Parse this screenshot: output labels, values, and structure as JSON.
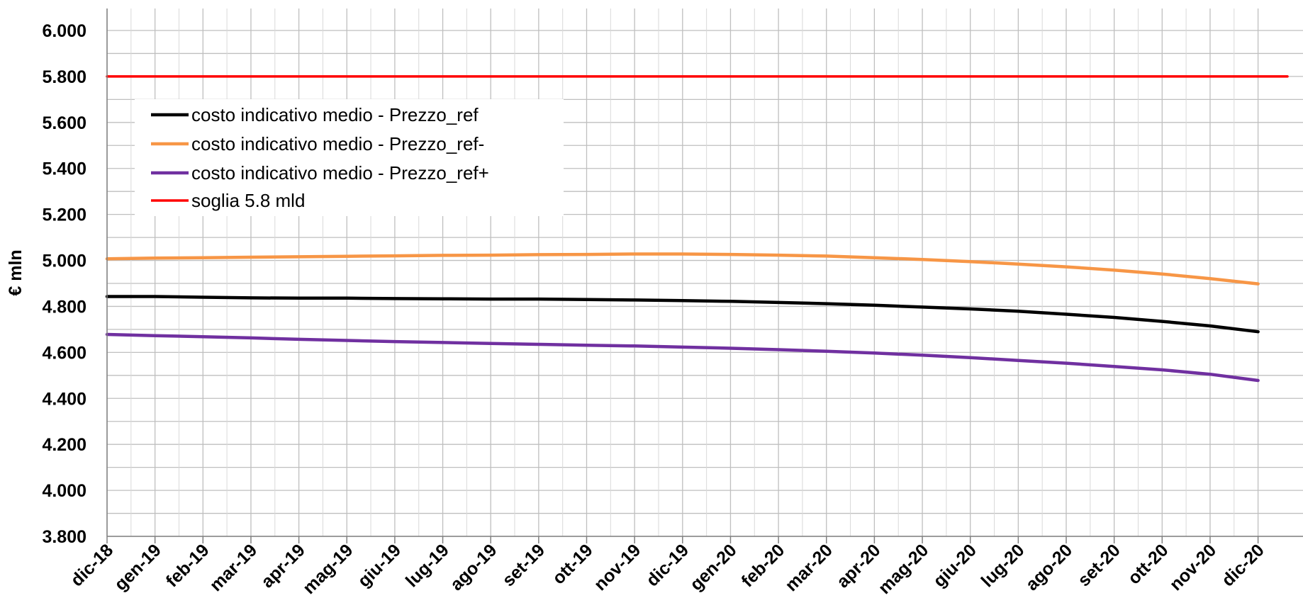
{
  "chart_data": {
    "type": "line",
    "title": "",
    "xlabel": "",
    "ylabel": "€ mln",
    "ylim": [
      3800,
      6000
    ],
    "ytick_step": 200,
    "yticks": [
      "3.800",
      "4.000",
      "4.200",
      "4.400",
      "4.600",
      "4.800",
      "5.000",
      "5.200",
      "5.400",
      "5.600",
      "5.800",
      "6.000"
    ],
    "grid": true,
    "legend_position": "top-left",
    "categories": [
      "dic-18",
      "gen-19",
      "feb-19",
      "mar-19",
      "apr-19",
      "mag-19",
      "giu-19",
      "lug-19",
      "ago-19",
      "set-19",
      "ott-19",
      "nov-19",
      "dic-19",
      "gen-20",
      "feb-20",
      "mar-20",
      "apr-20",
      "mag-20",
      "giu-20",
      "lug-20",
      "ago-20",
      "set-20",
      "ott-20",
      "nov-20",
      "dic-20"
    ],
    "series": [
      {
        "name": "costo indicativo medio - Prezzo_ref",
        "color": "#000000",
        "values": [
          4843,
          4843,
          4840,
          4837,
          4836,
          4836,
          4834,
          4833,
          4832,
          4832,
          4830,
          4828,
          4825,
          4822,
          4817,
          4812,
          4805,
          4797,
          4789,
          4779,
          4766,
          4752,
          4735,
          4715,
          4690
        ]
      },
      {
        "name": "costo indicativo medio - Prezzo_ref-",
        "color": "#F79646",
        "values": [
          5007,
          5010,
          5012,
          5014,
          5016,
          5018,
          5020,
          5022,
          5023,
          5025,
          5026,
          5028,
          5028,
          5026,
          5023,
          5019,
          5012,
          5004,
          4995,
          4984,
          4972,
          4958,
          4941,
          4921,
          4898
        ]
      },
      {
        "name": "costo indicativo medio - Prezzo_ref+",
        "color": "#7030A0",
        "values": [
          4678,
          4673,
          4668,
          4663,
          4657,
          4652,
          4647,
          4643,
          4639,
          4635,
          4631,
          4628,
          4623,
          4618,
          4612,
          4605,
          4597,
          4588,
          4577,
          4565,
          4553,
          4539,
          4524,
          4505,
          4478
        ]
      },
      {
        "name": "soglia 5.8 mld",
        "color": "#FF0000",
        "values": [
          5800,
          5800,
          5800,
          5800,
          5800,
          5800,
          5800,
          5800,
          5800,
          5800,
          5800,
          5800,
          5800,
          5800,
          5800,
          5800,
          5800,
          5800,
          5800,
          5800,
          5800,
          5800,
          5800,
          5800,
          5800
        ]
      }
    ]
  }
}
